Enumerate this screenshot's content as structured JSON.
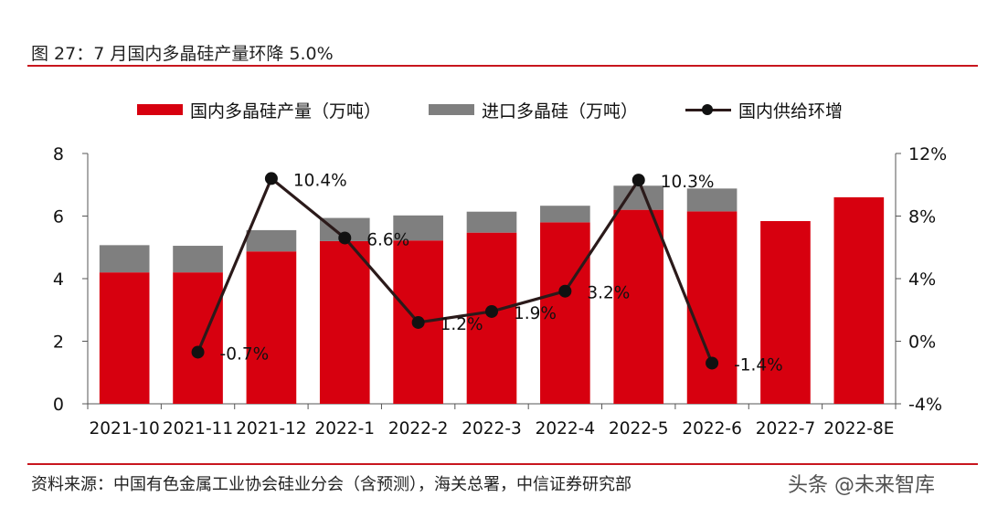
{
  "figure": {
    "title": "图 27：7 月国内多晶硅产量环降 5.0%",
    "source": "资料来源：中国有色金属工业协会硅业分会（含预测），海关总署，中信证券研究部",
    "watermark": "头条 @未来智库"
  },
  "chart_data": {
    "type": "bar",
    "stacked": true,
    "categories": [
      "2021-10",
      "2021-11",
      "2021-12",
      "2022-1",
      "2022-2",
      "2022-3",
      "2022-4",
      "2022-5",
      "2022-6",
      "2022-7",
      "2022-8E"
    ],
    "series": [
      {
        "name": "国内多晶硅产量（万吨）",
        "axis": "left",
        "kind": "bar",
        "color": "#d7000f",
        "values": [
          4.2,
          4.2,
          4.87,
          5.2,
          5.22,
          5.47,
          5.8,
          6.2,
          6.15,
          5.84,
          6.6
        ]
      },
      {
        "name": "进口多晶硅（万吨）",
        "axis": "left",
        "kind": "bar",
        "color": "#7f7f7f",
        "values": [
          0.87,
          0.85,
          0.68,
          0.74,
          0.8,
          0.67,
          0.53,
          0.77,
          0.73,
          null,
          null
        ]
      },
      {
        "name": "国内供给环增",
        "axis": "right",
        "kind": "line",
        "color": "#2b1a1a",
        "values": [
          null,
          -0.7,
          10.4,
          6.6,
          1.2,
          1.9,
          3.2,
          10.3,
          -1.4,
          null,
          null
        ],
        "labels": [
          null,
          "-0.7%",
          "10.4%",
          "6.6%",
          "1.2%",
          "1.9%",
          "3.2%",
          "10.3%",
          "-1.4%",
          null,
          null
        ]
      }
    ],
    "y_left": {
      "min": 0,
      "max": 8,
      "ticks": [
        0,
        2,
        4,
        6,
        8
      ],
      "tick_labels": [
        "0",
        "2",
        "4",
        "6",
        "8"
      ]
    },
    "y_right": {
      "min": -4,
      "max": 12,
      "ticks": [
        -4,
        0,
        4,
        8,
        12
      ],
      "tick_labels": [
        "-4%",
        "0%",
        "4%",
        "8%",
        "12%"
      ]
    },
    "legend_position": "top"
  }
}
